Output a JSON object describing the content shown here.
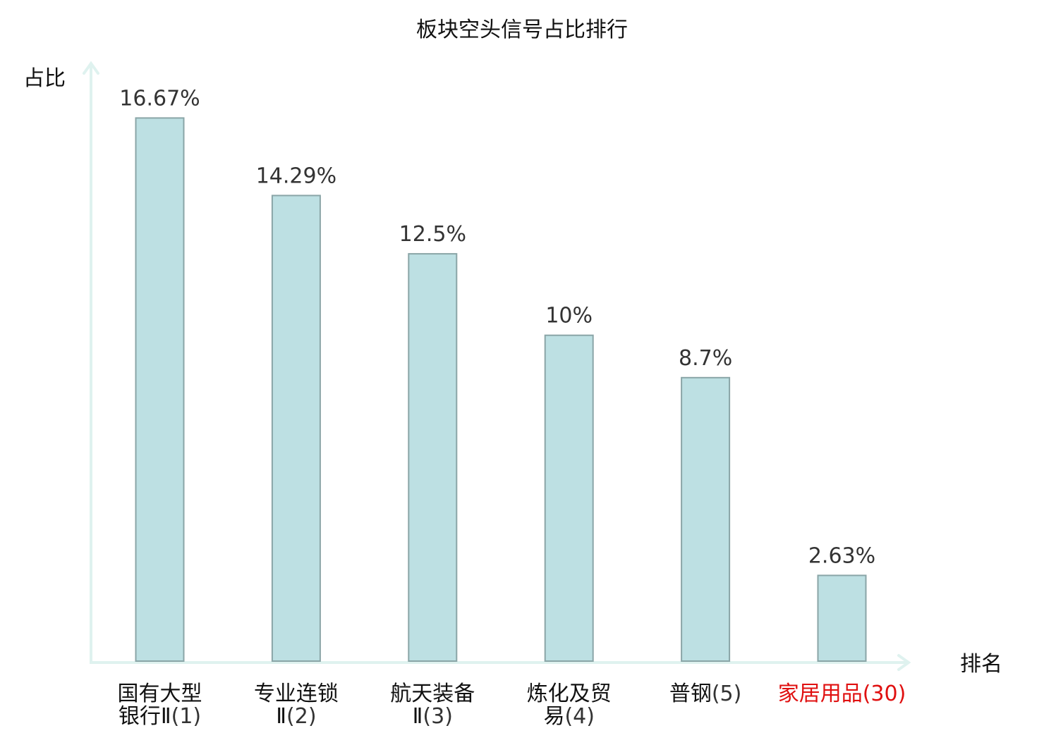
{
  "chart_data": {
    "type": "bar",
    "title": "板块空头信号占比排行",
    "ylabel": "占比",
    "xlabel": "排名",
    "ylim": [
      0,
      18.3
    ],
    "grid": false,
    "legend": "none",
    "categories": [
      {
        "name_lines": [
          "国有大型",
          "银行Ⅱ"
        ],
        "rank": "(1)",
        "highlight": false
      },
      {
        "name_lines": [
          "专业连锁",
          "Ⅱ"
        ],
        "rank": "(2)",
        "highlight": false
      },
      {
        "name_lines": [
          "航天装备",
          "Ⅱ"
        ],
        "rank": "(3)",
        "highlight": false
      },
      {
        "name_lines": [
          "炼化及贸",
          "易"
        ],
        "rank": "(4)",
        "highlight": false
      },
      {
        "name_lines": [
          "普钢"
        ],
        "rank": "(5)",
        "highlight": false
      },
      {
        "name_lines": [
          "家居用品"
        ],
        "rank": "(30)",
        "highlight": true
      }
    ],
    "values": [
      16.67,
      14.29,
      12.5,
      10,
      8.7,
      2.63
    ],
    "value_labels": [
      "16.67%",
      "14.29%",
      "12.5%",
      "10%",
      "8.7%",
      "2.63%"
    ],
    "colors": {
      "bar_fill": "#bde0e3",
      "bar_stroke": "#8aa5a7",
      "axis": "#dff2ef",
      "highlight": "#e01010",
      "text": "#111111",
      "value_text": "#333333"
    }
  }
}
